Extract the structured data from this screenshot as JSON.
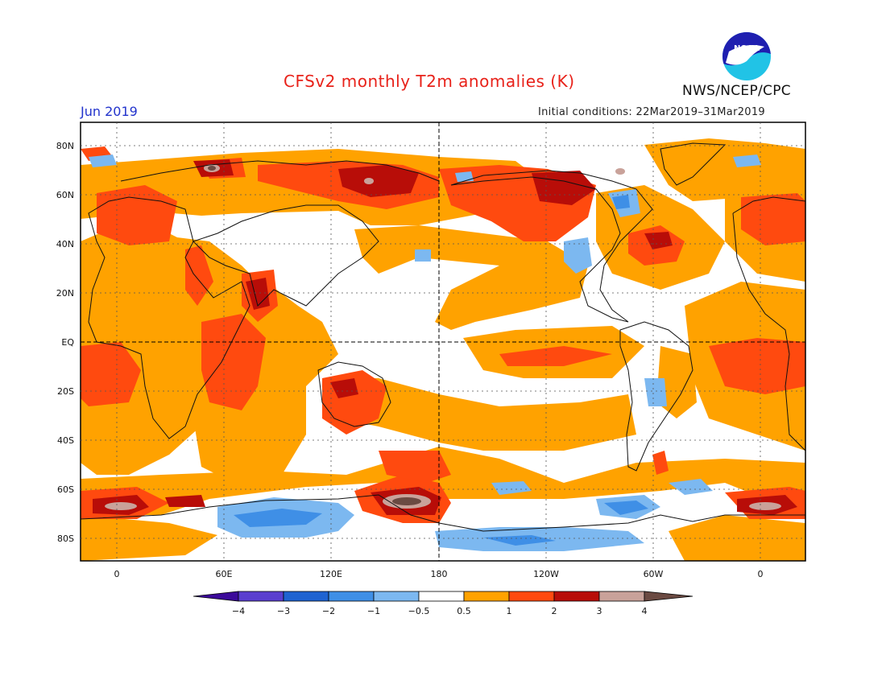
{
  "header": {
    "title": "CFSv2 monthly T2m anomalies (K)",
    "valid_month": "Jun 2019",
    "initial_conditions": "Initial conditions: 22Mar2019–31Mar2019",
    "agency": "NWS/NCEP/CPC",
    "logo_text": "NOAA"
  },
  "map": {
    "lat_labels": [
      "80N",
      "60N",
      "40N",
      "20N",
      "EQ",
      "20S",
      "40S",
      "60S",
      "80S"
    ],
    "lon_labels": [
      "0",
      "60E",
      "120E",
      "180",
      "120W",
      "60W",
      "0"
    ]
  },
  "legend": {
    "labels": [
      "−4",
      "−3",
      "−2",
      "−1",
      "−0.5",
      "0.5",
      "1",
      "2",
      "3",
      "4"
    ],
    "colors": [
      "#3c0a9a",
      "#5a3fcf",
      "#1f63d1",
      "#3f8fe6",
      "#7cb8f0",
      "#ffffff",
      "#ffa200",
      "#ff4a0f",
      "#b80d08",
      "#c9a29a",
      "#6b4a42"
    ]
  },
  "colors": {
    "title": "#e8221a",
    "valid_month": "#2233cc",
    "warm_05_1": "#ffa200",
    "warm_1_2": "#ff4a0f",
    "warm_2_3": "#b80d08",
    "warm_3_4": "#c9a29a",
    "cool_05_1": "#7cb8f0",
    "cool_1_2": "#3f8fe6"
  }
}
